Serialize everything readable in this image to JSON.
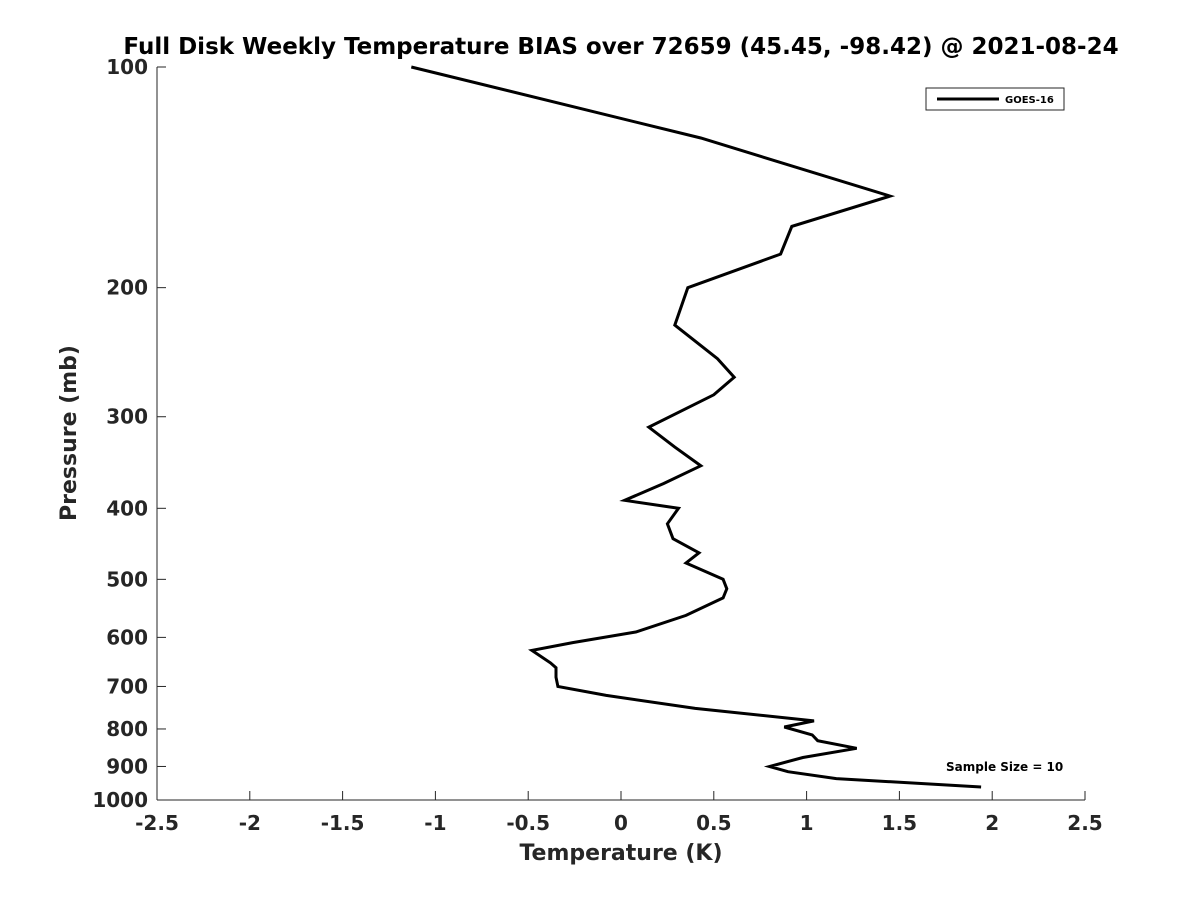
{
  "chart_data": {
    "type": "line",
    "title": "Full Disk Weekly Temperature BIAS over 72659 (45.45, -98.42) @ 2021-08-24",
    "xlabel": "Temperature (K)",
    "ylabel": "Pressure (mb)",
    "xlim": [
      -2.5,
      2.5
    ],
    "ylim": [
      100,
      1000
    ],
    "y_scale": "log",
    "y_reversed": true,
    "xticks": [
      -2.5,
      -2,
      -1.5,
      -1,
      -0.5,
      0,
      0.5,
      1,
      1.5,
      2,
      2.5
    ],
    "xtick_labels": [
      "-2.5",
      "-2",
      "-1.5",
      "-1",
      "-0.5",
      "0",
      "0.5",
      "1",
      "1.5",
      "2",
      "2.5"
    ],
    "yticks": [
      100,
      200,
      300,
      400,
      500,
      600,
      700,
      800,
      900,
      1000
    ],
    "ytick_labels": [
      "100",
      "200",
      "300",
      "400",
      "500",
      "600",
      "700",
      "800",
      "900",
      "1000"
    ],
    "grid": false,
    "legend_position": "top-right",
    "annotation": "Sample Size = 10",
    "series": [
      {
        "name": "GOES-16",
        "color": "#000000",
        "points": [
          {
            "x": -1.13,
            "y": 100
          },
          {
            "x": 0.43,
            "y": 125
          },
          {
            "x": 1.45,
            "y": 150
          },
          {
            "x": 0.92,
            "y": 165
          },
          {
            "x": 0.86,
            "y": 180
          },
          {
            "x": 0.36,
            "y": 200
          },
          {
            "x": 0.29,
            "y": 225
          },
          {
            "x": 0.52,
            "y": 250
          },
          {
            "x": 0.61,
            "y": 265
          },
          {
            "x": 0.5,
            "y": 280
          },
          {
            "x": 0.15,
            "y": 310
          },
          {
            "x": 0.29,
            "y": 330
          },
          {
            "x": 0.43,
            "y": 350
          },
          {
            "x": 0.23,
            "y": 370
          },
          {
            "x": 0.02,
            "y": 390
          },
          {
            "x": 0.31,
            "y": 400
          },
          {
            "x": 0.25,
            "y": 420
          },
          {
            "x": 0.28,
            "y": 440
          },
          {
            "x": 0.42,
            "y": 460
          },
          {
            "x": 0.35,
            "y": 475
          },
          {
            "x": 0.55,
            "y": 500
          },
          {
            "x": 0.57,
            "y": 515
          },
          {
            "x": 0.55,
            "y": 530
          },
          {
            "x": 0.35,
            "y": 560
          },
          {
            "x": 0.08,
            "y": 590
          },
          {
            "x": -0.26,
            "y": 610
          },
          {
            "x": -0.48,
            "y": 625
          },
          {
            "x": -0.38,
            "y": 650
          },
          {
            "x": -0.35,
            "y": 660
          },
          {
            "x": -0.35,
            "y": 680
          },
          {
            "x": -0.34,
            "y": 700
          },
          {
            "x": -0.08,
            "y": 720
          },
          {
            "x": 0.4,
            "y": 750
          },
          {
            "x": 1.04,
            "y": 780
          },
          {
            "x": 0.88,
            "y": 795
          },
          {
            "x": 1.03,
            "y": 815
          },
          {
            "x": 1.06,
            "y": 830
          },
          {
            "x": 1.27,
            "y": 850
          },
          {
            "x": 0.98,
            "y": 875
          },
          {
            "x": 0.8,
            "y": 900
          },
          {
            "x": 0.9,
            "y": 915
          },
          {
            "x": 1.16,
            "y": 935
          },
          {
            "x": 1.94,
            "y": 960
          }
        ]
      }
    ]
  }
}
